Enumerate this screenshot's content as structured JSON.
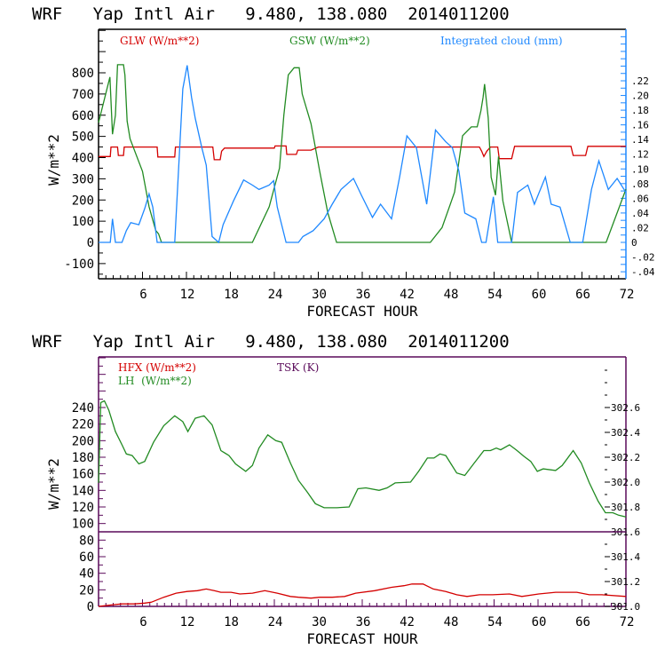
{
  "chart_data": [
    {
      "type": "line",
      "title": "WRF   Yap Intl Air   9.480, 138.080  2014011200",
      "xlabel": "FORECAST HOUR",
      "ylabel": "W/m**2",
      "xlim": [
        0,
        72
      ],
      "ylim": [
        -170,
        1005
      ],
      "y2lim": [
        -0.044,
        0.29
      ],
      "xticks": [
        "6",
        "12",
        "18",
        "24",
        "30",
        "36",
        "42",
        "48",
        "54",
        "60",
        "66",
        "72"
      ],
      "yticks": [
        "-100",
        "0",
        "100",
        "200",
        "300",
        "400",
        "500",
        "600",
        "700",
        "800"
      ],
      "y2ticks": [
        "-.04",
        "-.02",
        "0",
        ".02",
        ".04",
        ".06",
        ".08",
        ".10",
        ".12",
        ".14",
        ".16",
        ".18",
        ".20",
        ".22"
      ],
      "colors": {
        "GLW": "#d40000",
        "GSW": "#228b22",
        "CLOUD": "#1e88ff",
        "axis": "#000000",
        "right_axis": "#1e88ff"
      },
      "legend": [
        "GLW (W/m**2)",
        "GSW (W/m**2)",
        "Integrated cloud (mm)"
      ],
      "series": [
        {
          "name": "GLW (W/m**2)",
          "axis": "left",
          "x": [
            0,
            1.6,
            1.7,
            2.6,
            2.7,
            3.4,
            3.5,
            8,
            8.1,
            10.4,
            10.5,
            15.6,
            15.8,
            16.6,
            16.8,
            17.2,
            24,
            24.1,
            25.6,
            25.7,
            27,
            27.2,
            29,
            30,
            52,
            52.3,
            52.6,
            53,
            53.5,
            54.5,
            54.7,
            56.4,
            56.8,
            64.5,
            64.8,
            66.5,
            66.8,
            72
          ],
          "y": [
            405,
            405,
            450,
            450,
            410,
            410,
            450,
            450,
            403,
            403,
            450,
            450,
            390,
            390,
            430,
            445,
            445,
            455,
            455,
            415,
            415,
            435,
            435,
            450,
            450,
            430,
            405,
            430,
            450,
            450,
            395,
            395,
            453,
            453,
            410,
            410,
            453,
            453
          ]
        },
        {
          "name": "GSW (W/m**2)",
          "axis": "left",
          "x": [
            0,
            1.55,
            1.9,
            2.3,
            2.6,
            3.4,
            3.6,
            3.9,
            4.3,
            6,
            6.9,
            7.8,
            8.2,
            8.6,
            21,
            23.3,
            24.7,
            25.3,
            25.9,
            26.7,
            27.4,
            27.8,
            29,
            30.2,
            31.3,
            32.5,
            45.3,
            46.9,
            48.6,
            49.7,
            50.9,
            51.7,
            52.2,
            52.5,
            52.7,
            53.2,
            53.6,
            54.2,
            54.6,
            55.2,
            56.4,
            69.3,
            72
          ],
          "y": [
            565,
            780,
            510,
            600,
            838,
            838,
            790,
            572,
            489,
            335,
            168,
            56,
            40,
            0,
            0,
            168,
            350,
            600,
            790,
            824,
            824,
            700,
            560,
            335,
            140,
            0,
            0,
            70,
            237,
            503,
            545,
            545,
            622,
            684,
            747,
            587,
            307,
            223,
            405,
            196,
            0,
            0,
            251
          ]
        },
        {
          "name": "Integrated cloud (mm)",
          "axis": "right",
          "x": [
            0,
            1.6,
            1.9,
            2.3,
            3.2,
            3.8,
            4.4,
            5.5,
            6.3,
            6.9,
            7.4,
            8,
            10.4,
            11.5,
            12.1,
            12.7,
            13.2,
            14.1,
            14.7,
            15.5,
            16.4,
            17,
            18.4,
            19.8,
            21,
            21.9,
            23.3,
            23.9,
            24.4,
            25.6,
            27.3,
            27.9,
            29.3,
            30.8,
            31.9,
            33.1,
            34.8,
            35.9,
            37.4,
            38.5,
            40,
            41.1,
            42.1,
            43.4,
            44.8,
            46,
            47.4,
            48.3,
            49.2,
            50,
            51.5,
            52.3,
            52.9,
            53.9,
            54.5,
            56.4,
            57.2,
            58.6,
            59.5,
            61,
            61.8,
            63,
            64.4,
            66.1,
            67.3,
            68.3,
            69.6,
            70.8,
            72
          ],
          "y": [
            0,
            0,
            0.032,
            0,
            0,
            0.016,
            0.027,
            0.024,
            0.046,
            0.066,
            0.048,
            0,
            0,
            0.209,
            0.241,
            0.197,
            0.169,
            0.129,
            0.105,
            0.008,
            0,
            0.024,
            0.056,
            0.085,
            0.078,
            0.072,
            0.078,
            0.084,
            0.048,
            0,
            0,
            0.008,
            0.016,
            0.032,
            0.052,
            0.072,
            0.087,
            0.064,
            0.034,
            0.052,
            0.032,
            0.089,
            0.145,
            0.129,
            0.052,
            0.153,
            0.137,
            0.129,
            0.097,
            0.04,
            0.032,
            0,
            0,
            0.062,
            0,
            0,
            0.068,
            0.078,
            0.052,
            0.089,
            0.052,
            0.048,
            0,
            0,
            0.072,
            0.111,
            0.072,
            0.087,
            0.068
          ]
        }
      ]
    },
    {
      "type": "line",
      "title": "WRF   Yap Intl Air   9.480, 138.080  2014011200",
      "xlabel": "FORECAST HOUR",
      "ylabel": "W/m**2",
      "xlim": [
        0,
        72
      ],
      "ylim": [
        0,
        280
      ],
      "y2lim": [
        301.0,
        302.9
      ],
      "xticks": [
        "6",
        "12",
        "18",
        "24",
        "30",
        "36",
        "42",
        "48",
        "54",
        "60",
        "66",
        "72"
      ],
      "yticks": [
        "0",
        "20",
        "40",
        "60",
        "80",
        "100",
        "120",
        "140",
        "160",
        "180",
        "200",
        "220",
        "240"
      ],
      "y2ticks": [
        "301.0",
        "301.2",
        "301.4",
        "301.6",
        "301.8",
        "302.0",
        "302.2",
        "302.4",
        "302.6"
      ],
      "colors": {
        "HFX": "#d40000",
        "LH": "#228b22",
        "TSK": "#5a0a5a",
        "axis": "#5a0a5a"
      },
      "legend": [
        "HFX (W/m**2)",
        "LH  (W/m**2)",
        "TSK (K)"
      ],
      "series": [
        {
          "name": "HFX (W/m**2)",
          "axis": "left",
          "x": [
            0,
            2,
            3.2,
            4.9,
            6.3,
            7.2,
            8.9,
            10.6,
            12.1,
            13.5,
            14.7,
            15.8,
            16.7,
            18.1,
            19.3,
            21,
            22.7,
            24.4,
            26.2,
            27.3,
            29,
            30.2,
            31.9,
            33.6,
            35.1,
            37.7,
            40,
            41.7,
            42.8,
            44.3,
            45.7,
            47.4,
            48.9,
            50.3,
            52,
            53.8,
            56.1,
            57.8,
            60.1,
            62.4,
            65.3,
            67,
            68.7,
            72
          ],
          "y": [
            0,
            2,
            3,
            3,
            4,
            5,
            11,
            16,
            18,
            19,
            21,
            19,
            17,
            17,
            15,
            16,
            19,
            16,
            12,
            11,
            10,
            11,
            11,
            12,
            16,
            19,
            23,
            25,
            27,
            27,
            21,
            18,
            14,
            12,
            14,
            14,
            15,
            12,
            15,
            17,
            17,
            14,
            14,
            12
          ]
        },
        {
          "name": "LH  (W/m**2)",
          "axis": "left",
          "x": [
            0,
            0.3,
            0.8,
            1.4,
            2.3,
            3.2,
            3.8,
            4.6,
            5.5,
            6.3,
            7.5,
            8.9,
            10.4,
            11.5,
            12.2,
            13.2,
            14.4,
            15.5,
            16.7,
            17.8,
            18.7,
            20.1,
            21,
            21.9,
            23.1,
            24.2,
            25,
            26.2,
            27.3,
            28.5,
            29.6,
            30.8,
            32.5,
            34.2,
            35.4,
            36.5,
            38.3,
            39.4,
            40.5,
            42.6,
            43.7,
            44.9,
            45.8,
            46.6,
            47.4,
            48.9,
            50,
            51.2,
            52.6,
            53.5,
            54.3,
            54.9,
            56.1,
            57,
            58.1,
            59,
            59.9,
            60.7,
            62.4,
            63.3,
            64.8,
            65.9,
            67,
            68.2,
            69.2,
            70.2,
            71,
            72
          ],
          "y": [
            149,
            246,
            248,
            237,
            211,
            195,
            184,
            182,
            172,
            175,
            198,
            218,
            230,
            223,
            211,
            227,
            230,
            219,
            188,
            182,
            172,
            163,
            170,
            191,
            207,
            200,
            198,
            173,
            152,
            138,
            124,
            119,
            119,
            120,
            142,
            143,
            140,
            143,
            149,
            150,
            163,
            179,
            179,
            184,
            182,
            161,
            158,
            172,
            188,
            188,
            191,
            189,
            195,
            189,
            181,
            175,
            163,
            166,
            164,
            170,
            188,
            173,
            149,
            127,
            113,
            113,
            110,
            108
          ]
        },
        {
          "name": "TSK (K)",
          "axis": "right",
          "x": [
            0,
            72
          ],
          "y": [
            301.6,
            301.6
          ]
        }
      ]
    }
  ]
}
